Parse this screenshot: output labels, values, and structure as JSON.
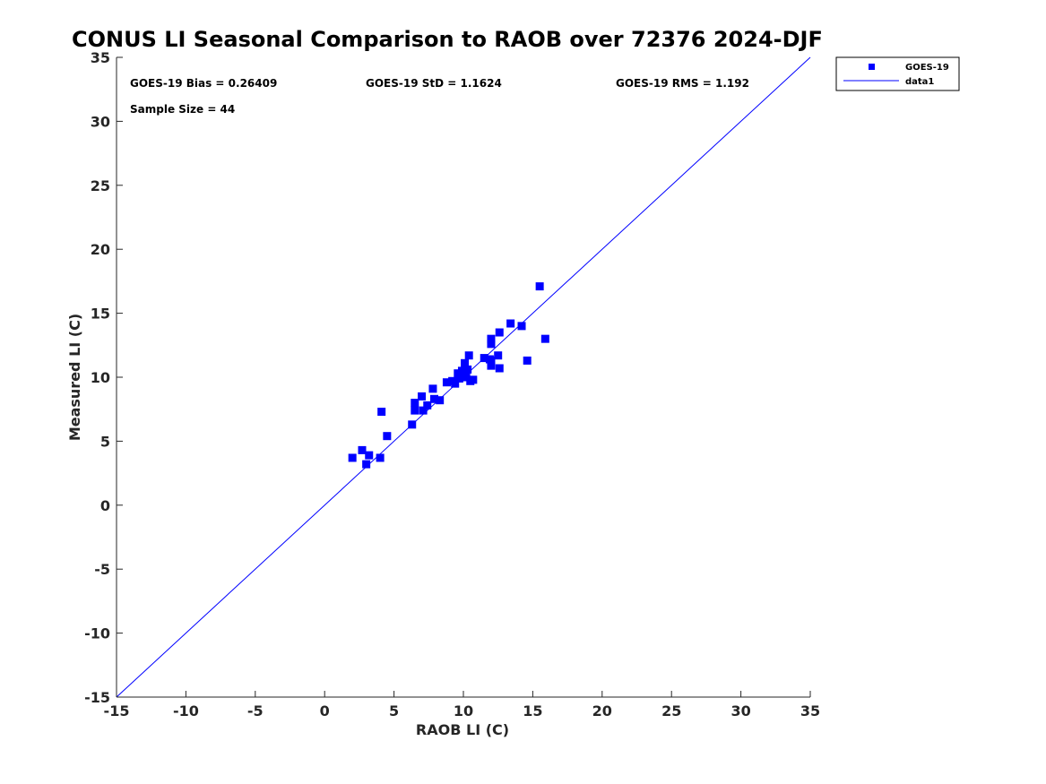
{
  "chart_data": {
    "type": "scatter",
    "title": "CONUS LI Seasonal Comparison to RAOB over 72376 2024-DJF",
    "xlabel": "RAOB LI (C)",
    "ylabel": "Measured LI (C)",
    "xlim": [
      -15,
      35
    ],
    "ylim": [
      -15,
      35
    ],
    "xticks": [
      "-15",
      "-10",
      "-5",
      "0",
      "5",
      "10",
      "15",
      "20",
      "25",
      "30",
      "35"
    ],
    "yticks": [
      "-15",
      "-10",
      "-5",
      "0",
      "5",
      "10",
      "15",
      "20",
      "25",
      "30",
      "35"
    ],
    "grid": false,
    "legend_position": "outside top-right",
    "annotations": {
      "bias": "GOES-19 Bias = 0.26409",
      "std": "GOES-19 StD = 1.1624",
      "rms": "GOES-19 RMS = 1.192",
      "sample": "Sample Size = 44"
    },
    "series": [
      {
        "name": "GOES-19",
        "kind": "scatter",
        "marker": "square",
        "color": "#0000ff",
        "points": [
          [
            2.0,
            3.7
          ],
          [
            2.7,
            4.3
          ],
          [
            3.0,
            3.2
          ],
          [
            3.2,
            3.9
          ],
          [
            4.0,
            3.7
          ],
          [
            4.1,
            7.3
          ],
          [
            4.5,
            5.4
          ],
          [
            6.3,
            6.3
          ],
          [
            6.5,
            7.4
          ],
          [
            6.5,
            8.0
          ],
          [
            7.0,
            8.5
          ],
          [
            7.1,
            7.4
          ],
          [
            7.4,
            7.8
          ],
          [
            7.8,
            9.1
          ],
          [
            7.9,
            8.3
          ],
          [
            8.3,
            8.2
          ],
          [
            8.8,
            9.6
          ],
          [
            9.2,
            9.7
          ],
          [
            9.4,
            9.5
          ],
          [
            9.6,
            10.3
          ],
          [
            9.7,
            9.9
          ],
          [
            9.9,
            10.5
          ],
          [
            10.0,
            10.0
          ],
          [
            10.1,
            11.1
          ],
          [
            10.2,
            10.1
          ],
          [
            10.4,
            11.7
          ],
          [
            10.5,
            9.7
          ],
          [
            10.7,
            9.8
          ],
          [
            11.5,
            11.5
          ],
          [
            12.0,
            10.9
          ],
          [
            12.0,
            11.3
          ],
          [
            12.0,
            12.6
          ],
          [
            12.0,
            13.0
          ],
          [
            12.5,
            11.7
          ],
          [
            12.6,
            13.5
          ],
          [
            12.6,
            10.7
          ],
          [
            13.4,
            14.2
          ],
          [
            14.2,
            14.0
          ],
          [
            14.6,
            11.3
          ],
          [
            15.5,
            17.1
          ],
          [
            15.9,
            13.0
          ],
          [
            9.8,
            10.2
          ],
          [
            10.3,
            10.6
          ],
          [
            11.9,
            11.4
          ]
        ]
      },
      {
        "name": "data1",
        "kind": "line",
        "color": "#0000ff",
        "points": [
          [
            -15,
            -15
          ],
          [
            35,
            35
          ]
        ]
      }
    ]
  }
}
